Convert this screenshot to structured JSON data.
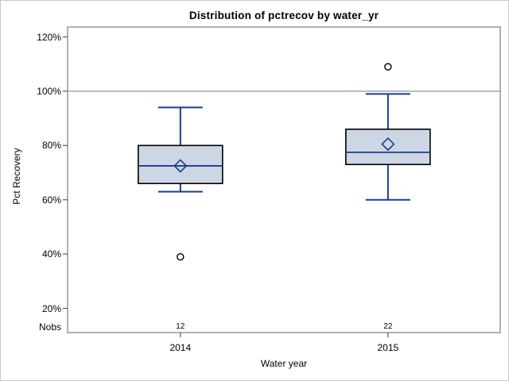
{
  "page": {
    "background": "#ffffff",
    "frame_border_color": "#c9c9c9"
  },
  "chart_data": {
    "type": "box",
    "title": "Distribution of pctrecov by water_yr",
    "xlabel": "Water year",
    "ylabel": "Pct Recovery",
    "nobs_header": "Nobs",
    "grid": "off",
    "legend": null,
    "yaxis": {
      "tick_values": [
        20,
        40,
        60,
        80,
        100,
        120
      ],
      "tick_labels": [
        "20%",
        "40%",
        "60%",
        "80%",
        "100%",
        "120%"
      ],
      "ylim": [
        11,
        124
      ]
    },
    "reference_line": 100,
    "categories": [
      "2014",
      "2015"
    ],
    "series": [
      {
        "category": "2014",
        "nobs": "12",
        "whisker_low": 63,
        "q1": 66,
        "median": 72.5,
        "mean": 72.5,
        "q3": 80,
        "whisker_high": 94,
        "outliers": [
          39
        ]
      },
      {
        "category": "2015",
        "nobs": "22",
        "whisker_low": 60,
        "q1": 73,
        "median": 77.5,
        "mean": 80.5,
        "q3": 86,
        "whisker_high": 99,
        "outliers": [
          109
        ]
      }
    ],
    "colors": {
      "box_fill": "#cdd6e4",
      "box_border": "#000000",
      "whisker": "#173d8a",
      "median": "#173d8a",
      "mean_marker": "#173d8a",
      "outlier": "#000000",
      "reference_line": "#a2a2a2",
      "axis_border": "#8f8f8f",
      "tick_mark": "#5a5a5a",
      "text": "#000000"
    }
  }
}
